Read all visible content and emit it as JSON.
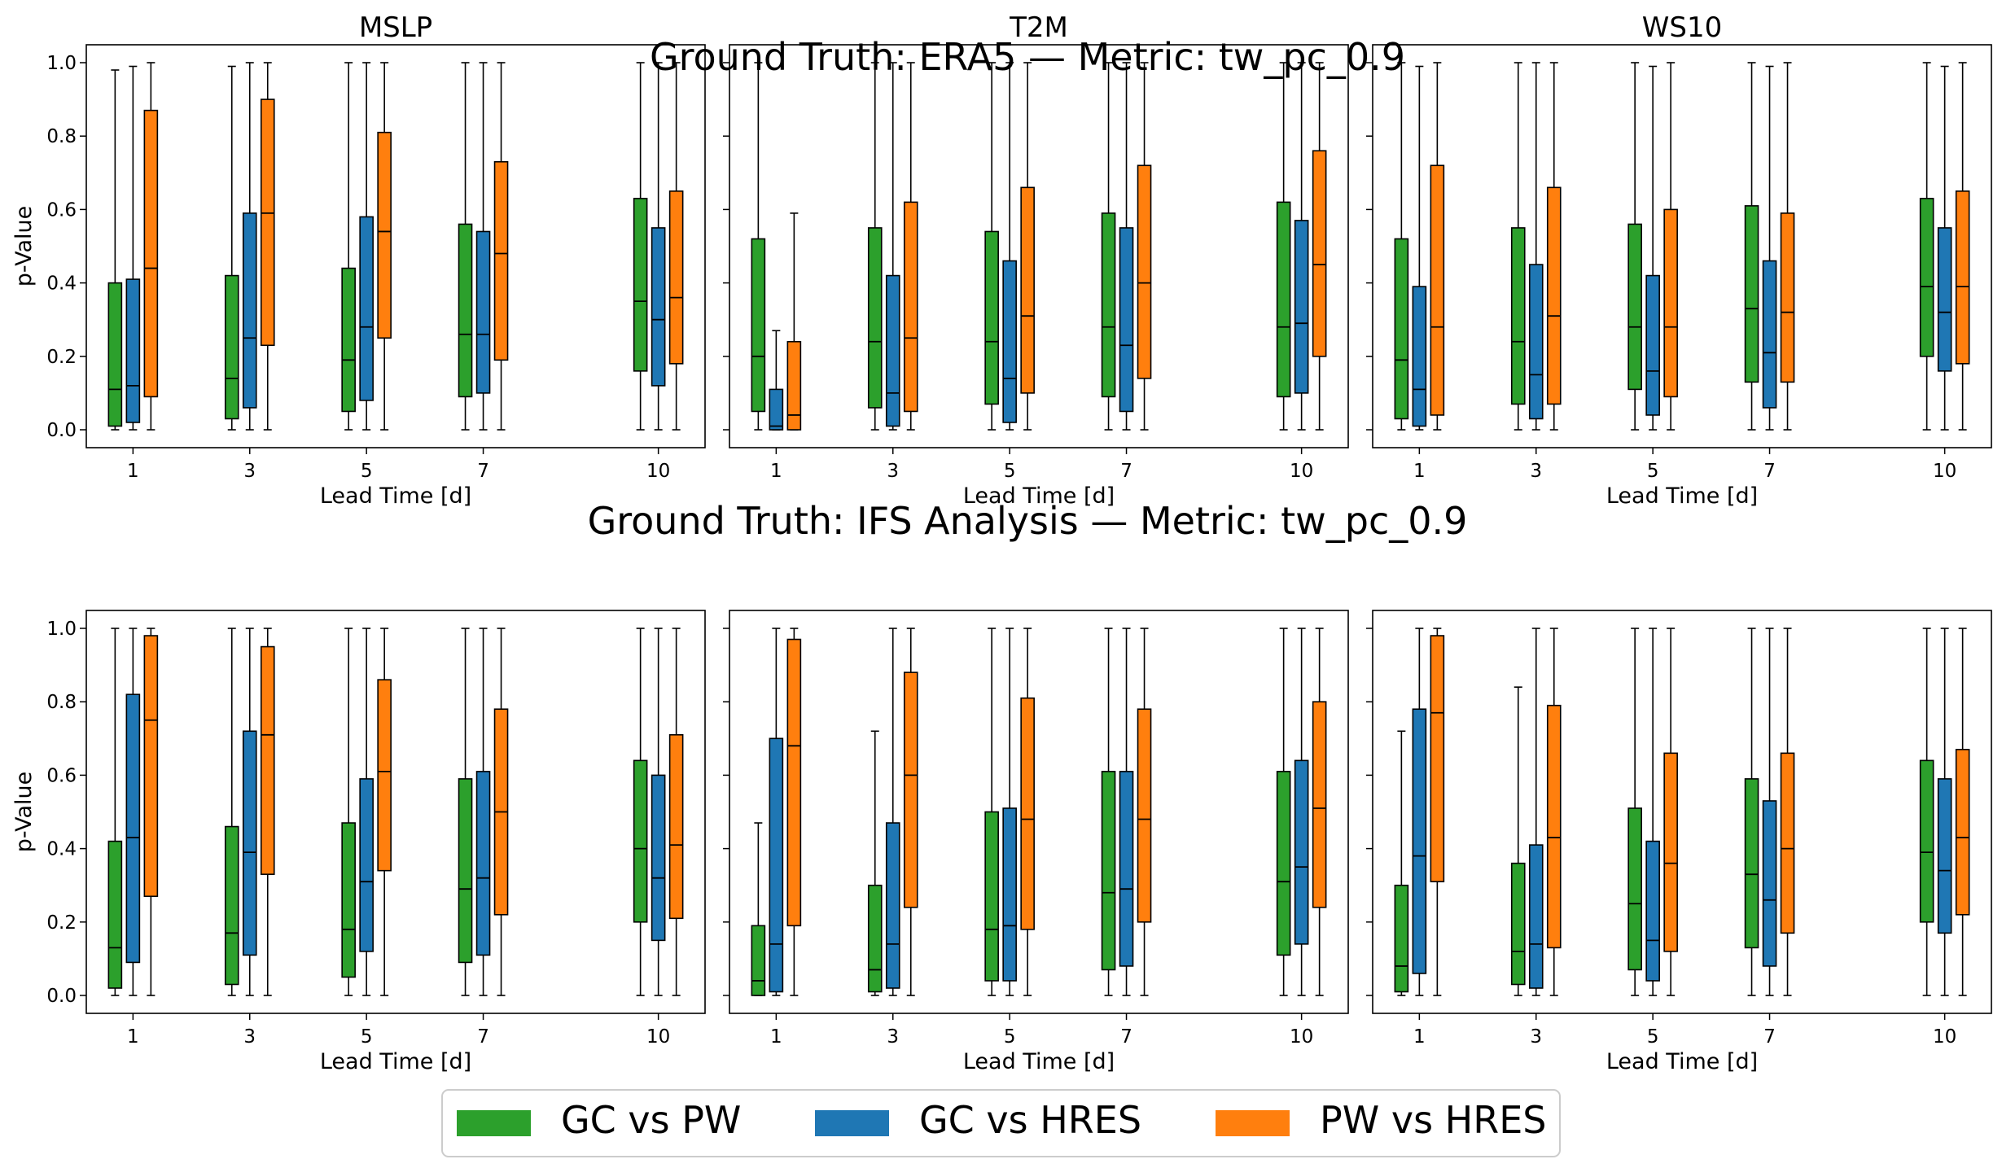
{
  "figure": {
    "row_titles": [
      "Ground Truth: ERA5 — Metric: tw_pc_0.9",
      "Ground Truth: IFS Analysis — Metric: tw_pc_0.9"
    ],
    "panel_titles": [
      "MSLP",
      "T2M",
      "WS10"
    ],
    "xlabel": "Lead Time [d]",
    "ylabel": "p-Value",
    "legend_position": "bottom-center"
  },
  "colors": {
    "GC vs PW": "#2ca02c",
    "GC vs HRES": "#1f77b4",
    "PW vs HRES": "#ff7f0e"
  },
  "chart_data": [
    {
      "type": "box",
      "row": "Ground Truth: ERA5 — Metric: tw_pc_0.9",
      "title": "MSLP",
      "xlabel": "Lead Time [d]",
      "ylabel": "p-Value",
      "ylim": [
        0,
        1
      ],
      "categories": [
        "1",
        "3",
        "5",
        "7",
        "10"
      ],
      "series": [
        {
          "name": "GC vs PW",
          "boxes": [
            {
              "min": 0.0,
              "q1": 0.01,
              "median": 0.11,
              "q3": 0.4,
              "max": 0.98
            },
            {
              "min": 0.0,
              "q1": 0.03,
              "median": 0.14,
              "q3": 0.42,
              "max": 0.99
            },
            {
              "min": 0.0,
              "q1": 0.05,
              "median": 0.19,
              "q3": 0.44,
              "max": 1.0
            },
            {
              "min": 0.0,
              "q1": 0.09,
              "median": 0.26,
              "q3": 0.56,
              "max": 1.0
            },
            {
              "min": 0.0,
              "q1": 0.16,
              "median": 0.35,
              "q3": 0.63,
              "max": 1.0
            }
          ]
        },
        {
          "name": "GC vs HRES",
          "boxes": [
            {
              "min": 0.0,
              "q1": 0.02,
              "median": 0.12,
              "q3": 0.41,
              "max": 0.99
            },
            {
              "min": 0.0,
              "q1": 0.06,
              "median": 0.25,
              "q3": 0.59,
              "max": 1.0
            },
            {
              "min": 0.0,
              "q1": 0.08,
              "median": 0.28,
              "q3": 0.58,
              "max": 1.0
            },
            {
              "min": 0.0,
              "q1": 0.1,
              "median": 0.26,
              "q3": 0.54,
              "max": 1.0
            },
            {
              "min": 0.0,
              "q1": 0.12,
              "median": 0.3,
              "q3": 0.55,
              "max": 1.0
            }
          ]
        },
        {
          "name": "PW vs HRES",
          "boxes": [
            {
              "min": 0.0,
              "q1": 0.09,
              "median": 0.44,
              "q3": 0.87,
              "max": 1.0
            },
            {
              "min": 0.0,
              "q1": 0.23,
              "median": 0.59,
              "q3": 0.9,
              "max": 1.0
            },
            {
              "min": 0.0,
              "q1": 0.25,
              "median": 0.54,
              "q3": 0.81,
              "max": 1.0
            },
            {
              "min": 0.0,
              "q1": 0.19,
              "median": 0.48,
              "q3": 0.73,
              "max": 1.0
            },
            {
              "min": 0.0,
              "q1": 0.18,
              "median": 0.36,
              "q3": 0.65,
              "max": 1.0
            }
          ]
        }
      ]
    },
    {
      "type": "box",
      "row": "Ground Truth: ERA5 — Metric: tw_pc_0.9",
      "title": "T2M",
      "xlabel": "Lead Time [d]",
      "ylim": [
        0,
        1
      ],
      "categories": [
        "1",
        "3",
        "5",
        "7",
        "10"
      ],
      "series": [
        {
          "name": "GC vs PW",
          "boxes": [
            {
              "min": 0.0,
              "q1": 0.05,
              "median": 0.2,
              "q3": 0.52,
              "max": 1.0
            },
            {
              "min": 0.0,
              "q1": 0.06,
              "median": 0.24,
              "q3": 0.55,
              "max": 1.0
            },
            {
              "min": 0.0,
              "q1": 0.07,
              "median": 0.24,
              "q3": 0.54,
              "max": 1.0
            },
            {
              "min": 0.0,
              "q1": 0.09,
              "median": 0.28,
              "q3": 0.59,
              "max": 1.0
            },
            {
              "min": 0.0,
              "q1": 0.09,
              "median": 0.28,
              "q3": 0.62,
              "max": 1.0
            }
          ]
        },
        {
          "name": "GC vs HRES",
          "boxes": [
            {
              "min": 0.0,
              "q1": 0.0,
              "median": 0.01,
              "q3": 0.11,
              "max": 0.27
            },
            {
              "min": 0.0,
              "q1": 0.01,
              "median": 0.1,
              "q3": 0.42,
              "max": 1.0
            },
            {
              "min": 0.0,
              "q1": 0.02,
              "median": 0.14,
              "q3": 0.46,
              "max": 1.0
            },
            {
              "min": 0.0,
              "q1": 0.05,
              "median": 0.23,
              "q3": 0.55,
              "max": 1.0
            },
            {
              "min": 0.0,
              "q1": 0.1,
              "median": 0.29,
              "q3": 0.57,
              "max": 1.0
            }
          ]
        },
        {
          "name": "PW vs HRES",
          "boxes": [
            {
              "min": 0.0,
              "q1": 0.0,
              "median": 0.04,
              "q3": 0.24,
              "max": 0.59
            },
            {
              "min": 0.0,
              "q1": 0.05,
              "median": 0.25,
              "q3": 0.62,
              "max": 1.0
            },
            {
              "min": 0.0,
              "q1": 0.1,
              "median": 0.31,
              "q3": 0.66,
              "max": 1.0
            },
            {
              "min": 0.0,
              "q1": 0.14,
              "median": 0.4,
              "q3": 0.72,
              "max": 1.0
            },
            {
              "min": 0.0,
              "q1": 0.2,
              "median": 0.45,
              "q3": 0.76,
              "max": 1.0
            }
          ]
        }
      ]
    },
    {
      "type": "box",
      "row": "Ground Truth: ERA5 — Metric: tw_pc_0.9",
      "title": "WS10",
      "xlabel": "Lead Time [d]",
      "ylim": [
        0,
        1
      ],
      "categories": [
        "1",
        "3",
        "5",
        "7",
        "10"
      ],
      "series": [
        {
          "name": "GC vs PW",
          "boxes": [
            {
              "min": 0.0,
              "q1": 0.03,
              "median": 0.19,
              "q3": 0.52,
              "max": 1.0
            },
            {
              "min": 0.0,
              "q1": 0.07,
              "median": 0.24,
              "q3": 0.55,
              "max": 1.0
            },
            {
              "min": 0.0,
              "q1": 0.11,
              "median": 0.28,
              "q3": 0.56,
              "max": 1.0
            },
            {
              "min": 0.0,
              "q1": 0.13,
              "median": 0.33,
              "q3": 0.61,
              "max": 1.0
            },
            {
              "min": 0.0,
              "q1": 0.2,
              "median": 0.39,
              "q3": 0.63,
              "max": 1.0
            }
          ]
        },
        {
          "name": "GC vs HRES",
          "boxes": [
            {
              "min": 0.0,
              "q1": 0.01,
              "median": 0.11,
              "q3": 0.39,
              "max": 0.99
            },
            {
              "min": 0.0,
              "q1": 0.03,
              "median": 0.15,
              "q3": 0.45,
              "max": 1.0
            },
            {
              "min": 0.0,
              "q1": 0.04,
              "median": 0.16,
              "q3": 0.42,
              "max": 0.99
            },
            {
              "min": 0.0,
              "q1": 0.06,
              "median": 0.21,
              "q3": 0.46,
              "max": 0.99
            },
            {
              "min": 0.0,
              "q1": 0.16,
              "median": 0.32,
              "q3": 0.55,
              "max": 0.99
            }
          ]
        },
        {
          "name": "PW vs HRES",
          "boxes": [
            {
              "min": 0.0,
              "q1": 0.04,
              "median": 0.28,
              "q3": 0.72,
              "max": 1.0
            },
            {
              "min": 0.0,
              "q1": 0.07,
              "median": 0.31,
              "q3": 0.66,
              "max": 1.0
            },
            {
              "min": 0.0,
              "q1": 0.09,
              "median": 0.28,
              "q3": 0.6,
              "max": 1.0
            },
            {
              "min": 0.0,
              "q1": 0.13,
              "median": 0.32,
              "q3": 0.59,
              "max": 1.0
            },
            {
              "min": 0.0,
              "q1": 0.18,
              "median": 0.39,
              "q3": 0.65,
              "max": 1.0
            }
          ]
        }
      ]
    },
    {
      "type": "box",
      "row": "Ground Truth: IFS Analysis — Metric: tw_pc_0.9",
      "title": "MSLP",
      "xlabel": "Lead Time [d]",
      "ylabel": "p-Value",
      "ylim": [
        0,
        1
      ],
      "categories": [
        "1",
        "3",
        "5",
        "7",
        "10"
      ],
      "series": [
        {
          "name": "GC vs PW",
          "boxes": [
            {
              "min": 0.0,
              "q1": 0.02,
              "median": 0.13,
              "q3": 0.42,
              "max": 1.0
            },
            {
              "min": 0.0,
              "q1": 0.03,
              "median": 0.17,
              "q3": 0.46,
              "max": 1.0
            },
            {
              "min": 0.0,
              "q1": 0.05,
              "median": 0.18,
              "q3": 0.47,
              "max": 1.0
            },
            {
              "min": 0.0,
              "q1": 0.09,
              "median": 0.29,
              "q3": 0.59,
              "max": 1.0
            },
            {
              "min": 0.0,
              "q1": 0.2,
              "median": 0.4,
              "q3": 0.64,
              "max": 1.0
            }
          ]
        },
        {
          "name": "GC vs HRES",
          "boxes": [
            {
              "min": 0.0,
              "q1": 0.09,
              "median": 0.43,
              "q3": 0.82,
              "max": 1.0
            },
            {
              "min": 0.0,
              "q1": 0.11,
              "median": 0.39,
              "q3": 0.72,
              "max": 1.0
            },
            {
              "min": 0.0,
              "q1": 0.12,
              "median": 0.31,
              "q3": 0.59,
              "max": 1.0
            },
            {
              "min": 0.0,
              "q1": 0.11,
              "median": 0.32,
              "q3": 0.61,
              "max": 1.0
            },
            {
              "min": 0.0,
              "q1": 0.15,
              "median": 0.32,
              "q3": 0.6,
              "max": 1.0
            }
          ]
        },
        {
          "name": "PW vs HRES",
          "boxes": [
            {
              "min": 0.0,
              "q1": 0.27,
              "median": 0.75,
              "q3": 0.98,
              "max": 1.0
            },
            {
              "min": 0.0,
              "q1": 0.33,
              "median": 0.71,
              "q3": 0.95,
              "max": 1.0
            },
            {
              "min": 0.0,
              "q1": 0.34,
              "median": 0.61,
              "q3": 0.86,
              "max": 1.0
            },
            {
              "min": 0.0,
              "q1": 0.22,
              "median": 0.5,
              "q3": 0.78,
              "max": 1.0
            },
            {
              "min": 0.0,
              "q1": 0.21,
              "median": 0.41,
              "q3": 0.71,
              "max": 1.0
            }
          ]
        }
      ]
    },
    {
      "type": "box",
      "row": "Ground Truth: IFS Analysis — Metric: tw_pc_0.9",
      "title": "T2M",
      "xlabel": "Lead Time [d]",
      "ylim": [
        0,
        1
      ],
      "categories": [
        "1",
        "3",
        "5",
        "7",
        "10"
      ],
      "series": [
        {
          "name": "GC vs PW",
          "boxes": [
            {
              "min": 0.0,
              "q1": 0.0,
              "median": 0.04,
              "q3": 0.19,
              "max": 0.47
            },
            {
              "min": 0.0,
              "q1": 0.01,
              "median": 0.07,
              "q3": 0.3,
              "max": 0.72
            },
            {
              "min": 0.0,
              "q1": 0.04,
              "median": 0.18,
              "q3": 0.5,
              "max": 1.0
            },
            {
              "min": 0.0,
              "q1": 0.07,
              "median": 0.28,
              "q3": 0.61,
              "max": 1.0
            },
            {
              "min": 0.0,
              "q1": 0.11,
              "median": 0.31,
              "q3": 0.61,
              "max": 1.0
            }
          ]
        },
        {
          "name": "GC vs HRES",
          "boxes": [
            {
              "min": 0.0,
              "q1": 0.01,
              "median": 0.14,
              "q3": 0.7,
              "max": 1.0
            },
            {
              "min": 0.0,
              "q1": 0.02,
              "median": 0.14,
              "q3": 0.47,
              "max": 1.0
            },
            {
              "min": 0.0,
              "q1": 0.04,
              "median": 0.19,
              "q3": 0.51,
              "max": 1.0
            },
            {
              "min": 0.0,
              "q1": 0.08,
              "median": 0.29,
              "q3": 0.61,
              "max": 1.0
            },
            {
              "min": 0.0,
              "q1": 0.14,
              "median": 0.35,
              "q3": 0.64,
              "max": 1.0
            }
          ]
        },
        {
          "name": "PW vs HRES",
          "boxes": [
            {
              "min": 0.0,
              "q1": 0.19,
              "median": 0.68,
              "q3": 0.97,
              "max": 1.0
            },
            {
              "min": 0.0,
              "q1": 0.24,
              "median": 0.6,
              "q3": 0.88,
              "max": 1.0
            },
            {
              "min": 0.0,
              "q1": 0.18,
              "median": 0.48,
              "q3": 0.81,
              "max": 1.0
            },
            {
              "min": 0.0,
              "q1": 0.2,
              "median": 0.48,
              "q3": 0.78,
              "max": 1.0
            },
            {
              "min": 0.0,
              "q1": 0.24,
              "median": 0.51,
              "q3": 0.8,
              "max": 1.0
            }
          ]
        }
      ]
    },
    {
      "type": "box",
      "row": "Ground Truth: IFS Analysis — Metric: tw_pc_0.9",
      "title": "WS10",
      "xlabel": "Lead Time [d]",
      "ylim": [
        0,
        1
      ],
      "categories": [
        "1",
        "3",
        "5",
        "7",
        "10"
      ],
      "series": [
        {
          "name": "GC vs PW",
          "boxes": [
            {
              "min": 0.0,
              "q1": 0.01,
              "median": 0.08,
              "q3": 0.3,
              "max": 0.72
            },
            {
              "min": 0.0,
              "q1": 0.03,
              "median": 0.12,
              "q3": 0.36,
              "max": 0.84
            },
            {
              "min": 0.0,
              "q1": 0.07,
              "median": 0.25,
              "q3": 0.51,
              "max": 1.0
            },
            {
              "min": 0.0,
              "q1": 0.13,
              "median": 0.33,
              "q3": 0.59,
              "max": 1.0
            },
            {
              "min": 0.0,
              "q1": 0.2,
              "median": 0.39,
              "q3": 0.64,
              "max": 1.0
            }
          ]
        },
        {
          "name": "GC vs HRES",
          "boxes": [
            {
              "min": 0.0,
              "q1": 0.06,
              "median": 0.38,
              "q3": 0.78,
              "max": 1.0
            },
            {
              "min": 0.0,
              "q1": 0.02,
              "median": 0.14,
              "q3": 0.41,
              "max": 1.0
            },
            {
              "min": 0.0,
              "q1": 0.04,
              "median": 0.15,
              "q3": 0.42,
              "max": 1.0
            },
            {
              "min": 0.0,
              "q1": 0.08,
              "median": 0.26,
              "q3": 0.53,
              "max": 1.0
            },
            {
              "min": 0.0,
              "q1": 0.17,
              "median": 0.34,
              "q3": 0.59,
              "max": 1.0
            }
          ]
        },
        {
          "name": "PW vs HRES",
          "boxes": [
            {
              "min": 0.0,
              "q1": 0.31,
              "median": 0.77,
              "q3": 0.98,
              "max": 1.0
            },
            {
              "min": 0.0,
              "q1": 0.13,
              "median": 0.43,
              "q3": 0.79,
              "max": 1.0
            },
            {
              "min": 0.0,
              "q1": 0.12,
              "median": 0.36,
              "q3": 0.66,
              "max": 1.0
            },
            {
              "min": 0.0,
              "q1": 0.17,
              "median": 0.4,
              "q3": 0.66,
              "max": 1.0
            },
            {
              "min": 0.0,
              "q1": 0.22,
              "median": 0.43,
              "q3": 0.67,
              "max": 1.0
            }
          ]
        }
      ]
    }
  ]
}
